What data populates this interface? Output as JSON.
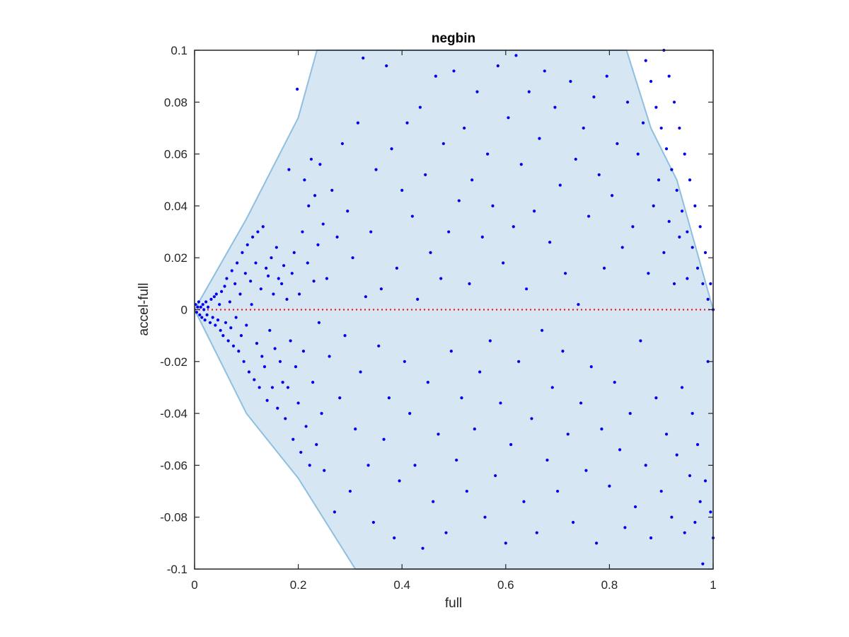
{
  "chart_data": {
    "type": "scatter",
    "title": "negbin",
    "xlabel": "full",
    "ylabel": "accel-full",
    "xlim": [
      0,
      1
    ],
    "ylim": [
      -0.1,
      0.1
    ],
    "x_ticks": [
      0,
      0.2,
      0.4,
      0.6,
      0.8,
      1
    ],
    "x_tick_labels": [
      "0",
      "0.2",
      "0.4",
      "0.6",
      "0.8",
      "1"
    ],
    "y_ticks": [
      -0.1,
      -0.08,
      -0.06,
      -0.04,
      -0.02,
      0,
      0.02,
      0.04,
      0.06,
      0.08,
      0.1
    ],
    "y_tick_labels": [
      "-0.1",
      "-0.08",
      "-0.06",
      "-0.04",
      "-0.02",
      "0",
      "0.02",
      "0.04",
      "0.06",
      "0.08",
      "0.1"
    ],
    "grid": false,
    "colors": {
      "points": "#0000ee",
      "region_fill": "#d6e6f2",
      "region_edge": "#8fbfe0",
      "zero_line": "#ff0000",
      "axes": "#262626"
    },
    "reference_line": {
      "y": 0,
      "style": "dotted",
      "color": "#ff0000"
    },
    "bounds_region": {
      "upper": [
        [
          0,
          0
        ],
        [
          0.1,
          0.035
        ],
        [
          0.2,
          0.074
        ],
        [
          0.236,
          0.1
        ],
        [
          0.833,
          0.1
        ],
        [
          0.88,
          0.07
        ],
        [
          0.93,
          0.05
        ],
        [
          1.0,
          0
        ]
      ],
      "lower": [
        [
          0,
          0
        ],
        [
          0.1,
          -0.04
        ],
        [
          0.2,
          -0.065
        ],
        [
          0.31,
          -0.1
        ],
        [
          1.0,
          -0.1
        ]
      ]
    },
    "series": [
      {
        "values": [
          [
            0.002,
            0.002
          ],
          [
            0.004,
            -0.001
          ],
          [
            0.006,
            0.001
          ],
          [
            0.008,
            0.003
          ],
          [
            0.01,
            -0.002
          ],
          [
            0.012,
            0.001
          ],
          [
            0.014,
            -0.003
          ],
          [
            0.016,
            0.002
          ],
          [
            0.018,
            0.0
          ],
          [
            0.02,
            -0.004
          ],
          [
            0.022,
            0.003
          ],
          [
            0.024,
            -0.002
          ],
          [
            0.026,
            0.001
          ],
          [
            0.03,
            -0.005
          ],
          [
            0.032,
            0.004
          ],
          [
            0.035,
            -0.003
          ],
          [
            0.038,
            0.005
          ],
          [
            0.04,
            -0.006
          ],
          [
            0.042,
            0.006
          ],
          [
            0.045,
            -0.004
          ],
          [
            0.048,
            0.002
          ],
          [
            0.05,
            -0.008
          ],
          [
            0.052,
            0.007
          ],
          [
            0.055,
            -0.01
          ],
          [
            0.058,
            0.009
          ],
          [
            0.06,
            -0.005
          ],
          [
            0.062,
            0.012
          ],
          [
            0.065,
            -0.012
          ],
          [
            0.068,
            0.003
          ],
          [
            0.07,
            -0.007
          ],
          [
            0.072,
            0.015
          ],
          [
            0.075,
            -0.014
          ],
          [
            0.078,
            0.01
          ],
          [
            0.08,
            -0.003
          ],
          [
            0.082,
            0.018
          ],
          [
            0.085,
            -0.016
          ],
          [
            0.088,
            0.006
          ],
          [
            0.09,
            -0.01
          ],
          [
            0.092,
            0.022
          ],
          [
            0.095,
            -0.02
          ],
          [
            0.098,
            0.014
          ],
          [
            0.1,
            -0.006
          ],
          [
            0.102,
            0.025
          ],
          [
            0.105,
            -0.024
          ],
          [
            0.108,
            0.011
          ],
          [
            0.11,
            0.002
          ],
          [
            0.112,
            0.028
          ],
          [
            0.115,
            -0.027
          ],
          [
            0.118,
            0.018
          ],
          [
            0.12,
            -0.013
          ],
          [
            0.122,
            0.03
          ],
          [
            0.125,
            -0.03
          ],
          [
            0.128,
            0.008
          ],
          [
            0.13,
            -0.018
          ],
          [
            0.132,
            0.032
          ],
          [
            0.135,
            -0.022
          ],
          [
            0.138,
            0.016
          ],
          [
            0.14,
            -0.035
          ],
          [
            0.142,
            0.013
          ],
          [
            0.145,
            -0.008
          ],
          [
            0.148,
            0.02
          ],
          [
            0.15,
            -0.03
          ],
          [
            0.152,
            0.006
          ],
          [
            0.155,
            -0.015
          ],
          [
            0.158,
            0.024
          ],
          [
            0.16,
            -0.038
          ],
          [
            0.162,
            0.012
          ],
          [
            0.165,
            -0.02
          ],
          [
            0.168,
            0.01
          ],
          [
            0.17,
            -0.028
          ],
          [
            0.172,
            0.017
          ],
          [
            0.175,
            -0.042
          ],
          [
            0.178,
            0.004
          ],
          [
            0.18,
            -0.03
          ],
          [
            0.182,
            0.054
          ],
          [
            0.185,
            -0.012
          ],
          [
            0.188,
            0.014
          ],
          [
            0.19,
            -0.05
          ],
          [
            0.192,
            0.022
          ],
          [
            0.195,
            -0.022
          ],
          [
            0.198,
            0.085
          ],
          [
            0.2,
            -0.036
          ],
          [
            0.202,
            0.006
          ],
          [
            0.205,
            -0.055
          ],
          [
            0.208,
            0.03
          ],
          [
            0.21,
            -0.016
          ],
          [
            0.212,
            0.05
          ],
          [
            0.215,
            -0.045
          ],
          [
            0.218,
            0.018
          ],
          [
            0.22,
            0.04
          ],
          [
            0.222,
            -0.06
          ],
          [
            0.225,
            0.058
          ],
          [
            0.228,
            -0.028
          ],
          [
            0.23,
            0.011
          ],
          [
            0.232,
            0.044
          ],
          [
            0.235,
            -0.052
          ],
          [
            0.238,
            0.025
          ],
          [
            0.24,
            -0.005
          ],
          [
            0.242,
            0.056
          ],
          [
            0.245,
            -0.04
          ],
          [
            0.248,
            0.033
          ],
          [
            0.25,
            -0.062
          ],
          [
            0.255,
            0.012
          ],
          [
            0.26,
            -0.018
          ],
          [
            0.265,
            0.046
          ],
          [
            0.27,
            -0.078
          ],
          [
            0.275,
            0.028
          ],
          [
            0.28,
            -0.034
          ],
          [
            0.285,
            0.064
          ],
          [
            0.29,
            -0.01
          ],
          [
            0.295,
            0.038
          ],
          [
            0.3,
            -0.07
          ],
          [
            0.305,
            0.02
          ],
          [
            0.31,
            -0.046
          ],
          [
            0.315,
            0.072
          ],
          [
            0.32,
            -0.024
          ],
          [
            0.325,
            0.097
          ],
          [
            0.33,
            0.005
          ],
          [
            0.335,
            -0.06
          ],
          [
            0.34,
            0.03
          ],
          [
            0.345,
            -0.082
          ],
          [
            0.35,
            0.054
          ],
          [
            0.355,
            -0.014
          ],
          [
            0.36,
            0.008
          ],
          [
            0.365,
            -0.05
          ],
          [
            0.37,
            0.094
          ],
          [
            0.375,
            -0.034
          ],
          [
            0.38,
            0.062
          ],
          [
            0.385,
            -0.088
          ],
          [
            0.39,
            0.016
          ],
          [
            0.395,
            -0.066
          ],
          [
            0.4,
            0.046
          ],
          [
            0.405,
            -0.02
          ],
          [
            0.41,
            0.072
          ],
          [
            0.415,
            -0.04
          ],
          [
            0.42,
            0.036
          ],
          [
            0.425,
            -0.06
          ],
          [
            0.43,
            0.004
          ],
          [
            0.435,
            0.078
          ],
          [
            0.44,
            -0.092
          ],
          [
            0.445,
            0.052
          ],
          [
            0.45,
            -0.028
          ],
          [
            0.455,
            0.022
          ],
          [
            0.46,
            -0.074
          ],
          [
            0.465,
            0.09
          ],
          [
            0.47,
            -0.048
          ],
          [
            0.475,
            0.012
          ],
          [
            0.48,
            0.064
          ],
          [
            0.485,
            -0.086
          ],
          [
            0.49,
            0.03
          ],
          [
            0.495,
            -0.016
          ],
          [
            0.5,
            0.092
          ],
          [
            0.505,
            -0.058
          ],
          [
            0.51,
            0.042
          ],
          [
            0.515,
            -0.034
          ],
          [
            0.52,
            0.07
          ],
          [
            0.525,
            -0.07
          ],
          [
            0.53,
            0.01
          ],
          [
            0.535,
            0.05
          ],
          [
            0.54,
            -0.046
          ],
          [
            0.545,
            0.084
          ],
          [
            0.55,
            -0.024
          ],
          [
            0.555,
            0.028
          ],
          [
            0.56,
            -0.08
          ],
          [
            0.565,
            0.06
          ],
          [
            0.57,
            -0.012
          ],
          [
            0.575,
            0.04
          ],
          [
            0.58,
            -0.064
          ],
          [
            0.585,
            0.094
          ],
          [
            0.59,
            -0.036
          ],
          [
            0.595,
            0.018
          ],
          [
            0.6,
            -0.09
          ],
          [
            0.605,
            0.074
          ],
          [
            0.61,
            -0.052
          ],
          [
            0.615,
            0.032
          ],
          [
            0.62,
            0.098
          ],
          [
            0.625,
            -0.02
          ],
          [
            0.63,
            0.056
          ],
          [
            0.635,
            -0.074
          ],
          [
            0.64,
            0.008
          ],
          [
            0.645,
            0.084
          ],
          [
            0.65,
            -0.042
          ],
          [
            0.655,
            0.038
          ],
          [
            0.66,
            -0.086
          ],
          [
            0.665,
            0.066
          ],
          [
            0.67,
            -0.008
          ],
          [
            0.675,
            0.092
          ],
          [
            0.68,
            -0.058
          ],
          [
            0.685,
            0.026
          ],
          [
            0.69,
            -0.03
          ],
          [
            0.695,
            0.078
          ],
          [
            0.7,
            -0.07
          ],
          [
            0.705,
            0.048
          ],
          [
            0.71,
            -0.016
          ],
          [
            0.715,
            0.014
          ],
          [
            0.72,
            -0.048
          ],
          [
            0.725,
            0.088
          ],
          [
            0.73,
            -0.082
          ],
          [
            0.735,
            0.058
          ],
          [
            0.74,
            0.002
          ],
          [
            0.745,
            -0.036
          ],
          [
            0.75,
            0.07
          ],
          [
            0.755,
            -0.062
          ],
          [
            0.76,
            0.036
          ],
          [
            0.765,
            -0.022
          ],
          [
            0.77,
            0.082
          ],
          [
            0.775,
            -0.09
          ],
          [
            0.78,
            0.052
          ],
          [
            0.785,
            -0.046
          ],
          [
            0.79,
            0.016
          ],
          [
            0.795,
            0.09
          ],
          [
            0.8,
            -0.068
          ],
          [
            0.805,
            0.044
          ],
          [
            0.81,
            -0.028
          ],
          [
            0.815,
            0.064
          ],
          [
            0.82,
            -0.054
          ],
          [
            0.825,
            0.024
          ],
          [
            0.83,
            -0.084
          ],
          [
            0.835,
            0.08
          ],
          [
            0.84,
            -0.04
          ],
          [
            0.845,
            0.032
          ],
          [
            0.85,
            -0.076
          ],
          [
            0.855,
            0.06
          ],
          [
            0.86,
            -0.012
          ],
          [
            0.865,
            0.072
          ],
          [
            0.87,
            -0.06
          ],
          [
            0.875,
            0.014
          ],
          [
            0.88,
            -0.088
          ],
          [
            0.885,
            0.04
          ],
          [
            0.89,
            -0.034
          ],
          [
            0.895,
            0.05
          ],
          [
            0.9,
            -0.07
          ],
          [
            0.905,
            0.022
          ],
          [
            0.91,
            -0.048
          ],
          [
            0.915,
            0.034
          ],
          [
            0.92,
            -0.08
          ],
          [
            0.925,
            0.01
          ],
          [
            0.93,
            -0.056
          ],
          [
            0.935,
            0.028
          ],
          [
            0.94,
            -0.03
          ],
          [
            0.945,
            -0.086
          ],
          [
            0.95,
            0.012
          ],
          [
            0.955,
            -0.064
          ],
          [
            0.96,
            -0.04
          ],
          [
            0.965,
            -0.082
          ],
          [
            0.97,
            -0.052
          ],
          [
            0.975,
            -0.074
          ],
          [
            0.98,
            -0.098
          ],
          [
            0.985,
            -0.066
          ],
          [
            0.99,
            -0.02
          ],
          [
            0.995,
            -0.078
          ],
          [
            1.0,
            -0.088
          ],
          [
            0.87,
            0.096
          ],
          [
            0.88,
            0.088
          ],
          [
            0.89,
            0.078
          ],
          [
            0.9,
            0.07
          ],
          [
            0.91,
            0.062
          ],
          [
            0.92,
            0.054
          ],
          [
            0.93,
            0.046
          ],
          [
            0.94,
            0.038
          ],
          [
            0.95,
            0.03
          ],
          [
            0.96,
            0.024
          ],
          [
            0.97,
            0.016
          ],
          [
            0.98,
            0.01
          ],
          [
            0.99,
            0.004
          ],
          [
            1.0,
            0.0
          ],
          [
            0.905,
            0.1
          ],
          [
            0.915,
            0.09
          ],
          [
            0.925,
            0.08
          ],
          [
            0.935,
            0.07
          ],
          [
            0.945,
            0.06
          ],
          [
            0.955,
            0.05
          ],
          [
            0.965,
            0.04
          ],
          [
            0.975,
            0.032
          ],
          [
            0.985,
            0.022
          ],
          [
            0.995,
            0.01
          ]
        ]
      }
    ]
  }
}
